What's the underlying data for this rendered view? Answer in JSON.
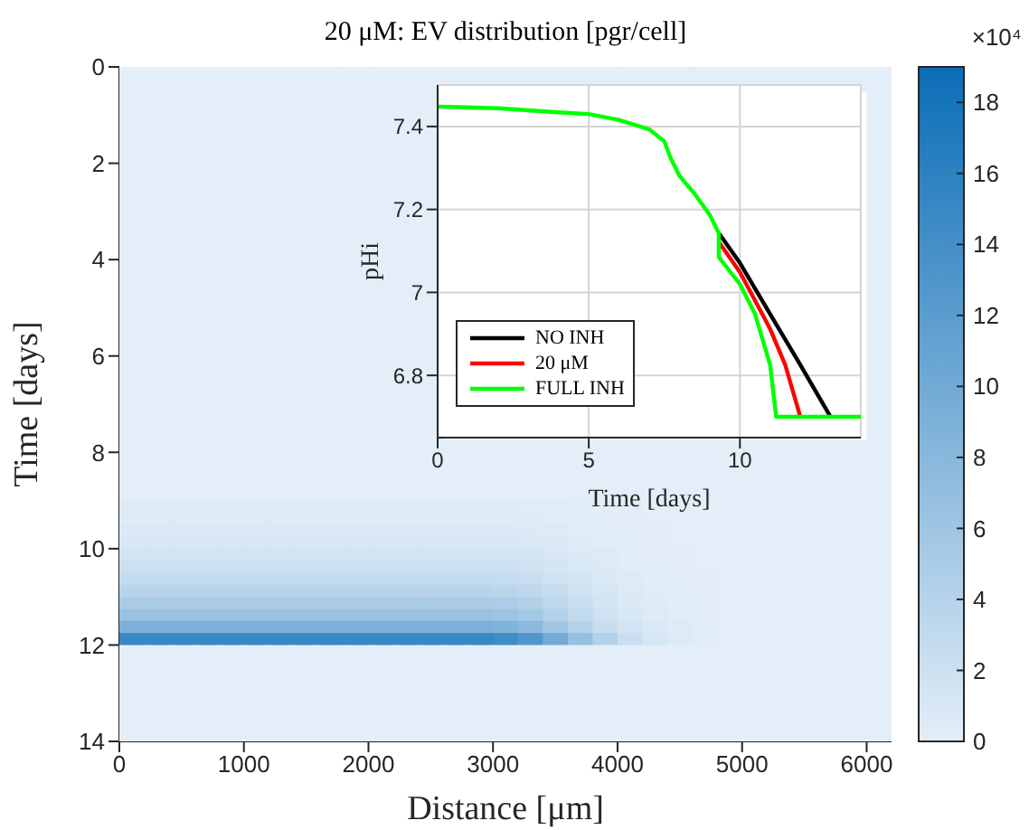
{
  "chart_data": [
    {
      "type": "heatmap",
      "title": "20 μM: EV distribution [pgr/cell]",
      "xlabel": "Distance [μm]",
      "ylabel": "Time [days]",
      "clabel": "×10⁴",
      "xlim": [
        0,
        6200
      ],
      "xticks": [
        0,
        1000,
        2000,
        3000,
        4000,
        5000,
        6000
      ],
      "ylim": [
        14,
        0
      ],
      "yticks": [
        0,
        2,
        4,
        6,
        8,
        10,
        12,
        14
      ],
      "clim": [
        0,
        19
      ],
      "cticks": [
        0,
        2,
        4,
        6,
        8,
        10,
        12,
        14,
        16,
        18
      ],
      "colors": [
        "#e3eef8",
        "#0b6db6"
      ],
      "x": [
        100,
        300,
        500,
        700,
        900,
        1100,
        1300,
        1500,
        1700,
        1900,
        2100,
        2300,
        2500,
        2700,
        2900,
        3100,
        3300,
        3500,
        3700,
        3900,
        4100,
        4300,
        4500,
        4700,
        4900,
        5100,
        5300,
        5500,
        5700,
        5900,
        6100
      ],
      "y": [
        0.125,
        0.375,
        0.625,
        0.875,
        1.125,
        1.375,
        1.625,
        1.875,
        2.125,
        2.375,
        2.625,
        2.875,
        3.125,
        3.375,
        3.625,
        3.875,
        4.125,
        4.375,
        4.625,
        4.875,
        5.125,
        5.375,
        5.625,
        5.875,
        6.125,
        6.375,
        6.625,
        6.875,
        7.125,
        7.375,
        7.625,
        7.875,
        8.125,
        8.375,
        8.625,
        8.875,
        9.125,
        9.375,
        9.625,
        9.875,
        10.125,
        10.375,
        10.625,
        10.875,
        11.125,
        11.375,
        11.625,
        11.875,
        12.125,
        12.375,
        12.625,
        12.875,
        13.125,
        13.375,
        13.625,
        13.875
      ],
      "cells": [
        [
          0,
          0,
          0,
          0,
          0,
          0,
          0,
          0,
          0,
          0,
          0,
          0,
          0,
          0,
          0,
          0,
          0,
          0,
          0,
          0,
          0,
          0,
          0,
          0,
          0,
          0,
          0,
          0,
          0,
          0,
          0
        ],
        [
          0,
          0,
          0,
          0,
          0,
          0,
          0,
          0,
          0,
          0,
          0,
          0,
          0,
          0,
          0,
          0,
          0,
          0,
          0,
          0,
          0,
          0,
          0,
          0,
          0,
          0,
          0,
          0,
          0,
          0,
          0
        ],
        [
          0,
          0,
          0,
          0,
          0,
          0,
          0,
          0,
          0,
          0,
          0,
          0,
          0,
          null,
          null,
          null,
          null,
          null,
          null,
          null,
          null,
          null,
          null,
          null,
          null,
          null,
          null,
          null,
          null,
          null,
          0
        ],
        [
          0,
          0,
          0,
          0,
          0,
          0,
          0,
          0,
          0,
          0,
          0,
          0,
          0,
          null,
          null,
          null,
          null,
          null,
          null,
          null,
          null,
          null,
          null,
          null,
          null,
          null,
          null,
          null,
          null,
          null,
          0
        ],
        [
          0,
          0,
          0,
          0,
          0,
          0,
          0,
          0,
          0,
          0,
          0,
          0,
          0,
          null,
          null,
          null,
          null,
          null,
          null,
          null,
          null,
          null,
          null,
          null,
          null,
          null,
          null,
          null,
          null,
          null,
          0
        ],
        [
          0,
          0,
          0,
          0,
          0,
          0,
          0,
          0,
          0,
          0,
          0,
          0,
          0,
          null,
          null,
          null,
          null,
          null,
          null,
          null,
          null,
          null,
          null,
          null,
          null,
          null,
          null,
          null,
          null,
          null,
          0
        ],
        [
          0,
          0,
          0,
          0,
          0,
          0,
          0,
          0,
          0,
          0,
          0,
          0,
          0,
          null,
          null,
          null,
          null,
          null,
          null,
          null,
          null,
          null,
          null,
          null,
          null,
          null,
          null,
          null,
          null,
          null,
          0
        ],
        [
          0,
          0,
          0,
          0,
          0,
          0,
          0,
          0,
          0,
          0,
          0,
          0,
          0,
          null,
          null,
          null,
          null,
          null,
          null,
          null,
          null,
          null,
          null,
          null,
          null,
          null,
          null,
          null,
          null,
          null,
          0
        ],
        [
          0,
          0,
          0,
          0,
          0,
          0,
          0,
          0,
          0,
          0,
          0,
          0,
          0,
          null,
          null,
          null,
          null,
          null,
          null,
          null,
          null,
          null,
          null,
          null,
          null,
          null,
          null,
          null,
          null,
          null,
          0
        ],
        [
          0,
          0,
          0,
          0,
          0,
          0,
          0,
          0,
          0,
          0,
          0,
          0,
          0,
          null,
          null,
          null,
          null,
          null,
          null,
          null,
          null,
          null,
          null,
          null,
          null,
          null,
          null,
          null,
          null,
          null,
          0
        ],
        [
          0,
          0,
          0,
          0,
          0,
          0,
          0,
          0,
          0,
          0,
          0,
          0,
          0,
          null,
          null,
          null,
          null,
          null,
          null,
          null,
          null,
          null,
          null,
          null,
          null,
          null,
          null,
          null,
          null,
          null,
          0
        ],
        [
          0,
          0,
          0,
          0,
          0,
          0,
          0,
          0,
          0,
          0,
          0,
          0,
          0,
          null,
          null,
          null,
          null,
          null,
          null,
          null,
          null,
          null,
          null,
          null,
          null,
          null,
          null,
          null,
          null,
          null,
          0
        ],
        [
          0,
          0,
          0,
          0,
          0,
          0,
          0,
          0,
          0,
          0,
          0,
          0,
          0,
          null,
          null,
          null,
          null,
          null,
          null,
          null,
          null,
          null,
          null,
          null,
          null,
          null,
          null,
          null,
          null,
          null,
          0
        ],
        [
          0,
          0,
          0,
          0,
          0,
          0,
          0,
          0,
          0,
          0,
          0,
          0,
          0,
          null,
          null,
          null,
          null,
          null,
          null,
          null,
          null,
          null,
          null,
          null,
          null,
          null,
          null,
          null,
          null,
          null,
          0
        ],
        [
          0,
          0,
          0,
          0,
          0,
          0,
          0,
          0,
          0,
          0,
          0,
          0,
          0,
          null,
          null,
          null,
          null,
          null,
          null,
          null,
          null,
          null,
          null,
          null,
          null,
          null,
          null,
          null,
          null,
          null,
          0
        ],
        [
          0,
          0,
          0,
          0,
          0,
          0,
          0,
          0,
          0,
          0,
          0,
          0,
          0,
          null,
          null,
          null,
          null,
          null,
          null,
          null,
          null,
          null,
          null,
          null,
          null,
          null,
          null,
          null,
          null,
          null,
          0
        ],
        [
          0,
          0,
          0,
          0,
          0,
          0,
          0,
          0,
          0,
          0,
          0,
          0,
          0,
          null,
          null,
          null,
          null,
          null,
          null,
          null,
          null,
          null,
          null,
          null,
          null,
          null,
          null,
          null,
          null,
          null,
          0
        ],
        [
          0,
          0,
          0,
          0,
          0,
          0,
          0,
          0,
          0,
          0,
          0,
          0,
          0,
          null,
          null,
          null,
          null,
          null,
          null,
          null,
          null,
          null,
          null,
          null,
          null,
          null,
          null,
          null,
          null,
          null,
          0
        ],
        [
          0,
          0,
          0,
          0,
          0,
          0,
          0,
          0,
          0,
          0,
          0,
          0,
          0,
          null,
          null,
          null,
          null,
          null,
          null,
          null,
          null,
          null,
          null,
          null,
          null,
          null,
          null,
          null,
          null,
          null,
          0
        ],
        [
          0,
          0,
          0,
          0,
          0,
          0,
          0,
          0,
          0,
          0,
          0,
          0,
          0,
          null,
          null,
          null,
          null,
          null,
          null,
          null,
          null,
          null,
          null,
          null,
          null,
          null,
          null,
          null,
          null,
          null,
          0
        ],
        [
          0,
          0,
          0,
          0,
          0,
          0,
          0,
          0,
          0,
          0,
          0,
          0,
          0,
          null,
          null,
          null,
          null,
          null,
          null,
          null,
          null,
          null,
          null,
          null,
          null,
          null,
          null,
          null,
          null,
          null,
          0
        ],
        [
          0,
          0,
          0,
          0,
          0,
          0,
          0,
          0,
          0,
          0,
          0,
          0,
          0,
          null,
          null,
          null,
          null,
          null,
          null,
          null,
          null,
          null,
          null,
          null,
          null,
          null,
          null,
          null,
          null,
          null,
          0
        ],
        [
          0,
          0,
          0,
          0,
          0,
          0,
          0,
          0,
          0,
          0,
          0,
          0,
          0,
          null,
          null,
          null,
          null,
          null,
          null,
          null,
          null,
          null,
          null,
          null,
          null,
          null,
          null,
          null,
          null,
          null,
          0
        ],
        [
          0,
          0,
          0,
          0,
          0,
          0,
          0,
          0,
          0,
          0,
          0,
          0,
          0,
          null,
          null,
          null,
          null,
          null,
          null,
          null,
          null,
          null,
          null,
          null,
          null,
          null,
          null,
          null,
          null,
          null,
          0
        ],
        [
          0,
          0,
          0,
          0,
          0,
          0,
          0,
          0,
          0,
          0,
          0,
          0,
          0,
          null,
          null,
          null,
          null,
          null,
          null,
          null,
          null,
          null,
          null,
          null,
          null,
          null,
          null,
          null,
          null,
          null,
          0
        ],
        [
          0,
          0,
          0,
          0,
          0,
          0,
          0,
          0,
          0,
          0,
          0,
          0,
          0,
          null,
          null,
          null,
          null,
          null,
          null,
          null,
          null,
          null,
          null,
          null,
          null,
          null,
          null,
          null,
          null,
          null,
          0
        ],
        [
          0,
          0,
          0,
          0,
          0,
          0,
          0,
          0,
          0,
          0,
          0,
          0,
          0,
          null,
          null,
          null,
          null,
          null,
          null,
          null,
          null,
          null,
          null,
          null,
          null,
          null,
          null,
          null,
          null,
          null,
          0
        ],
        [
          0,
          0,
          0,
          0,
          0,
          0,
          0,
          0,
          0,
          0,
          0,
          0,
          0,
          null,
          null,
          null,
          null,
          null,
          null,
          null,
          null,
          null,
          null,
          null,
          null,
          null,
          null,
          null,
          null,
          null,
          0
        ],
        [
          0,
          0,
          0,
          0,
          0,
          0,
          0,
          0,
          0,
          0,
          0,
          0,
          0,
          null,
          null,
          null,
          null,
          null,
          null,
          null,
          null,
          null,
          null,
          null,
          null,
          null,
          null,
          null,
          null,
          null,
          0
        ],
        [
          0,
          0,
          0,
          0,
          0,
          0,
          0,
          0,
          0,
          0,
          0,
          0,
          0,
          null,
          null,
          null,
          null,
          null,
          null,
          null,
          null,
          null,
          null,
          null,
          null,
          null,
          null,
          null,
          null,
          null,
          0
        ],
        [
          0,
          0,
          0,
          0,
          0,
          0,
          0,
          0,
          0,
          0,
          0,
          0,
          0,
          null,
          null,
          null,
          null,
          null,
          null,
          null,
          null,
          null,
          null,
          null,
          null,
          null,
          null,
          null,
          null,
          null,
          0
        ],
        [
          0,
          0,
          0,
          0,
          0,
          0,
          0,
          0,
          0,
          0,
          0,
          0,
          0,
          0,
          0,
          0,
          0,
          0,
          0,
          0,
          0,
          0,
          0,
          0,
          0,
          0,
          0,
          0,
          0,
          0,
          0
        ],
        [
          0,
          0,
          0,
          0,
          0,
          0,
          0,
          0,
          0,
          0,
          0,
          0,
          0,
          0,
          0,
          0,
          0,
          0,
          0,
          0,
          0,
          0,
          0,
          0,
          0,
          0,
          0,
          0,
          0,
          0,
          0
        ],
        [
          0,
          0,
          0,
          0,
          0,
          0,
          0,
          0,
          0,
          0,
          0,
          0,
          0,
          0,
          0,
          0,
          0,
          0,
          0,
          0,
          0,
          0,
          0,
          0,
          0,
          0,
          0,
          0,
          0,
          0,
          0
        ],
        [
          0,
          0,
          0,
          0,
          0,
          0,
          0,
          0,
          0,
          0,
          0,
          0,
          0,
          0,
          0,
          0,
          0,
          0,
          0,
          0,
          0,
          0,
          0,
          0,
          0,
          0,
          0,
          0,
          0,
          0,
          0
        ],
        [
          0,
          0,
          0,
          0,
          0,
          0,
          0,
          0,
          0,
          0,
          0,
          0,
          0,
          0,
          0,
          0,
          0,
          0,
          0,
          0,
          0,
          0,
          0,
          0,
          0,
          0,
          0,
          0,
          0,
          0,
          0
        ],
        [
          0.4,
          0.4,
          0.4,
          0.4,
          0.4,
          0.4,
          0.4,
          0.4,
          0.4,
          0.4,
          0.4,
          0.4,
          0.4,
          0.4,
          0.4,
          0.4,
          0.3,
          0.3,
          0.2,
          0.1,
          0.1,
          0,
          0,
          0,
          0,
          0,
          0,
          0,
          0,
          0,
          0
        ],
        [
          0.5,
          0.5,
          0.5,
          0.5,
          0.5,
          0.5,
          0.5,
          0.5,
          0.5,
          0.5,
          0.5,
          0.5,
          0.5,
          0.5,
          0.5,
          0.5,
          0.4,
          0.3,
          0.2,
          0.1,
          0.1,
          0,
          0,
          0,
          0,
          0,
          0,
          0,
          0,
          0,
          0
        ],
        [
          0.7,
          0.7,
          0.7,
          0.7,
          0.7,
          0.7,
          0.7,
          0.7,
          0.7,
          0.7,
          0.7,
          0.7,
          0.7,
          0.7,
          0.7,
          0.7,
          0.6,
          0.5,
          0.3,
          0.2,
          0.1,
          0.1,
          0,
          0,
          0,
          0,
          0,
          0,
          0,
          0,
          0
        ],
        [
          1,
          1,
          1,
          1,
          1,
          1,
          1,
          1,
          1,
          1,
          1,
          1,
          1,
          1,
          1,
          1,
          0.9,
          0.7,
          0.5,
          0.3,
          0.2,
          0.1,
          0,
          0,
          0,
          0,
          0,
          0,
          0,
          0,
          0
        ],
        [
          1.5,
          1.5,
          1.5,
          1.5,
          1.5,
          1.5,
          1.5,
          1.5,
          1.5,
          1.5,
          1.5,
          1.5,
          1.5,
          1.5,
          1.5,
          1.4,
          1.3,
          1,
          0.7,
          0.4,
          0.2,
          0.1,
          0.1,
          0,
          0,
          0,
          0,
          0,
          0,
          0,
          0
        ],
        [
          2,
          2,
          2,
          2,
          2,
          2,
          2,
          2,
          2,
          2,
          2,
          2,
          2,
          2,
          2,
          1.9,
          1.7,
          1.3,
          0.9,
          0.6,
          0.3,
          0.2,
          0.1,
          0,
          0,
          0,
          0,
          0,
          0,
          0,
          0
        ],
        [
          2.8,
          2.8,
          2.8,
          2.8,
          2.8,
          2.8,
          2.8,
          2.8,
          2.8,
          2.8,
          2.8,
          2.8,
          2.8,
          2.8,
          2.8,
          2.7,
          2.4,
          1.8,
          1.3,
          0.8,
          0.4,
          0.2,
          0.1,
          0.1,
          0,
          0,
          0,
          0,
          0,
          0,
          0
        ],
        [
          3.8,
          3.8,
          3.8,
          3.8,
          3.8,
          3.8,
          3.8,
          3.8,
          3.8,
          3.8,
          3.8,
          3.8,
          3.8,
          3.8,
          3.8,
          3.6,
          3.2,
          2.5,
          1.7,
          1.1,
          0.6,
          0.3,
          0.2,
          0.1,
          0,
          0,
          0,
          0,
          0,
          0,
          0
        ],
        [
          5,
          5,
          5,
          5,
          5,
          5,
          5,
          5,
          5,
          5,
          5,
          5,
          5,
          5,
          5,
          4.8,
          4.3,
          3.3,
          2.3,
          1.4,
          0.8,
          0.4,
          0.2,
          0.1,
          0,
          0,
          0,
          0,
          0,
          0,
          0
        ],
        [
          6.5,
          6.5,
          6.5,
          6.5,
          6.5,
          6.5,
          6.5,
          6.5,
          6.5,
          6.5,
          6.5,
          6.5,
          6.5,
          6.5,
          6.5,
          6.2,
          5.5,
          4.2,
          2.9,
          1.8,
          1,
          0.5,
          0.3,
          0.1,
          0,
          0,
          0,
          0,
          0,
          0,
          0
        ],
        [
          9,
          9,
          9,
          9,
          9,
          9,
          9,
          9,
          9,
          9,
          9,
          9,
          9,
          9,
          9,
          8.6,
          7.7,
          5.9,
          4.1,
          2.5,
          1.4,
          0.7,
          0.4,
          0.2,
          0,
          0,
          0,
          0,
          0,
          0,
          0
        ],
        [
          15,
          15,
          15,
          15,
          15,
          15,
          15,
          15,
          15,
          15,
          15,
          15,
          15,
          15,
          15,
          14.3,
          12.8,
          9.8,
          6.8,
          4.2,
          2.3,
          1.2,
          0.6,
          0.3,
          0,
          0,
          0,
          0,
          0,
          0,
          0
        ],
        [
          0,
          0,
          0,
          0,
          0,
          0,
          0,
          0,
          0,
          0,
          0,
          0,
          0,
          0,
          0,
          0,
          0,
          0,
          0,
          0,
          0,
          0,
          0,
          0,
          0,
          0,
          0,
          0,
          0,
          0,
          0
        ],
        [
          0,
          0,
          0,
          0,
          0,
          0,
          0,
          0,
          0,
          0,
          0,
          0,
          0,
          0,
          0,
          0,
          0,
          0,
          0,
          0,
          0,
          0,
          0,
          0,
          0,
          0,
          0,
          0,
          0,
          0,
          0
        ],
        [
          0,
          0,
          0,
          0,
          0,
          0,
          0,
          0,
          0,
          0,
          0,
          0,
          0,
          0,
          0,
          0,
          0,
          0,
          0,
          0,
          0,
          0,
          0,
          0,
          0,
          0,
          0,
          0,
          0,
          0,
          0
        ],
        [
          0,
          0,
          0,
          0,
          0,
          0,
          0,
          0,
          0,
          0,
          0,
          0,
          0,
          0,
          0,
          0,
          0,
          0,
          0,
          0,
          0,
          0,
          0,
          0,
          0,
          0,
          0,
          0,
          0,
          0,
          0
        ],
        [
          0,
          0,
          0,
          0,
          0,
          0,
          0,
          0,
          0,
          0,
          0,
          0,
          0,
          0,
          0,
          0,
          0,
          0,
          0,
          0,
          0,
          0,
          0,
          0,
          0,
          0,
          0,
          0,
          0,
          0,
          0
        ],
        [
          0,
          0,
          0,
          0,
          0,
          0,
          0,
          0,
          0,
          0,
          0,
          0,
          0,
          0,
          0,
          0,
          0,
          0,
          0,
          0,
          0,
          0,
          0,
          0,
          0,
          0,
          0,
          0,
          0,
          0,
          0
        ],
        [
          0,
          0,
          0,
          0,
          0,
          0,
          0,
          0,
          0,
          0,
          0,
          0,
          0,
          0,
          0,
          0,
          0,
          0,
          0,
          0,
          0,
          0,
          0,
          0,
          0,
          0,
          0,
          0,
          0,
          0,
          0
        ],
        [
          0,
          0,
          0,
          0,
          0,
          0,
          0,
          0,
          0,
          0,
          0,
          0,
          0,
          0,
          0,
          0,
          0,
          0,
          0,
          0,
          0,
          0,
          0,
          0,
          0,
          0,
          0,
          0,
          0,
          0,
          0
        ]
      ]
    },
    {
      "type": "line",
      "xlabel": "Time [days]",
      "ylabel": "pHi",
      "xlim": [
        0,
        14
      ],
      "xticks": [
        0,
        5,
        10
      ],
      "ylim": [
        6.65,
        7.5
      ],
      "yticks": [
        6.8,
        7,
        7.2,
        7.4
      ],
      "grid": true,
      "legend": "bottom left",
      "line_style": "solid",
      "series": [
        {
          "name": "NO INH",
          "color": "#000000",
          "x": [
            9.3,
            10,
            11,
            12,
            13
          ],
          "values": [
            7.143,
            7.071,
            6.948,
            6.825,
            6.7
          ]
        },
        {
          "name": "20 μM",
          "color": "#ff0000",
          "x": [
            9.3,
            10,
            11,
            11.5,
            12
          ],
          "values": [
            7.122,
            7.049,
            6.912,
            6.825,
            6.7
          ]
        },
        {
          "name": "FULL INH",
          "color": "#00ff00",
          "x": [
            0,
            2,
            4,
            5,
            6,
            7,
            7.5,
            7.7,
            8,
            8.5,
            9,
            9.3,
            9.3,
            10,
            10.5,
            11,
            11.2,
            14
          ],
          "values": [
            7.448,
            7.444,
            7.434,
            7.43,
            7.416,
            7.393,
            7.364,
            7.325,
            7.281,
            7.238,
            7.187,
            7.143,
            7.085,
            7.02,
            6.948,
            6.825,
            6.7,
            6.7
          ]
        }
      ]
    }
  ]
}
